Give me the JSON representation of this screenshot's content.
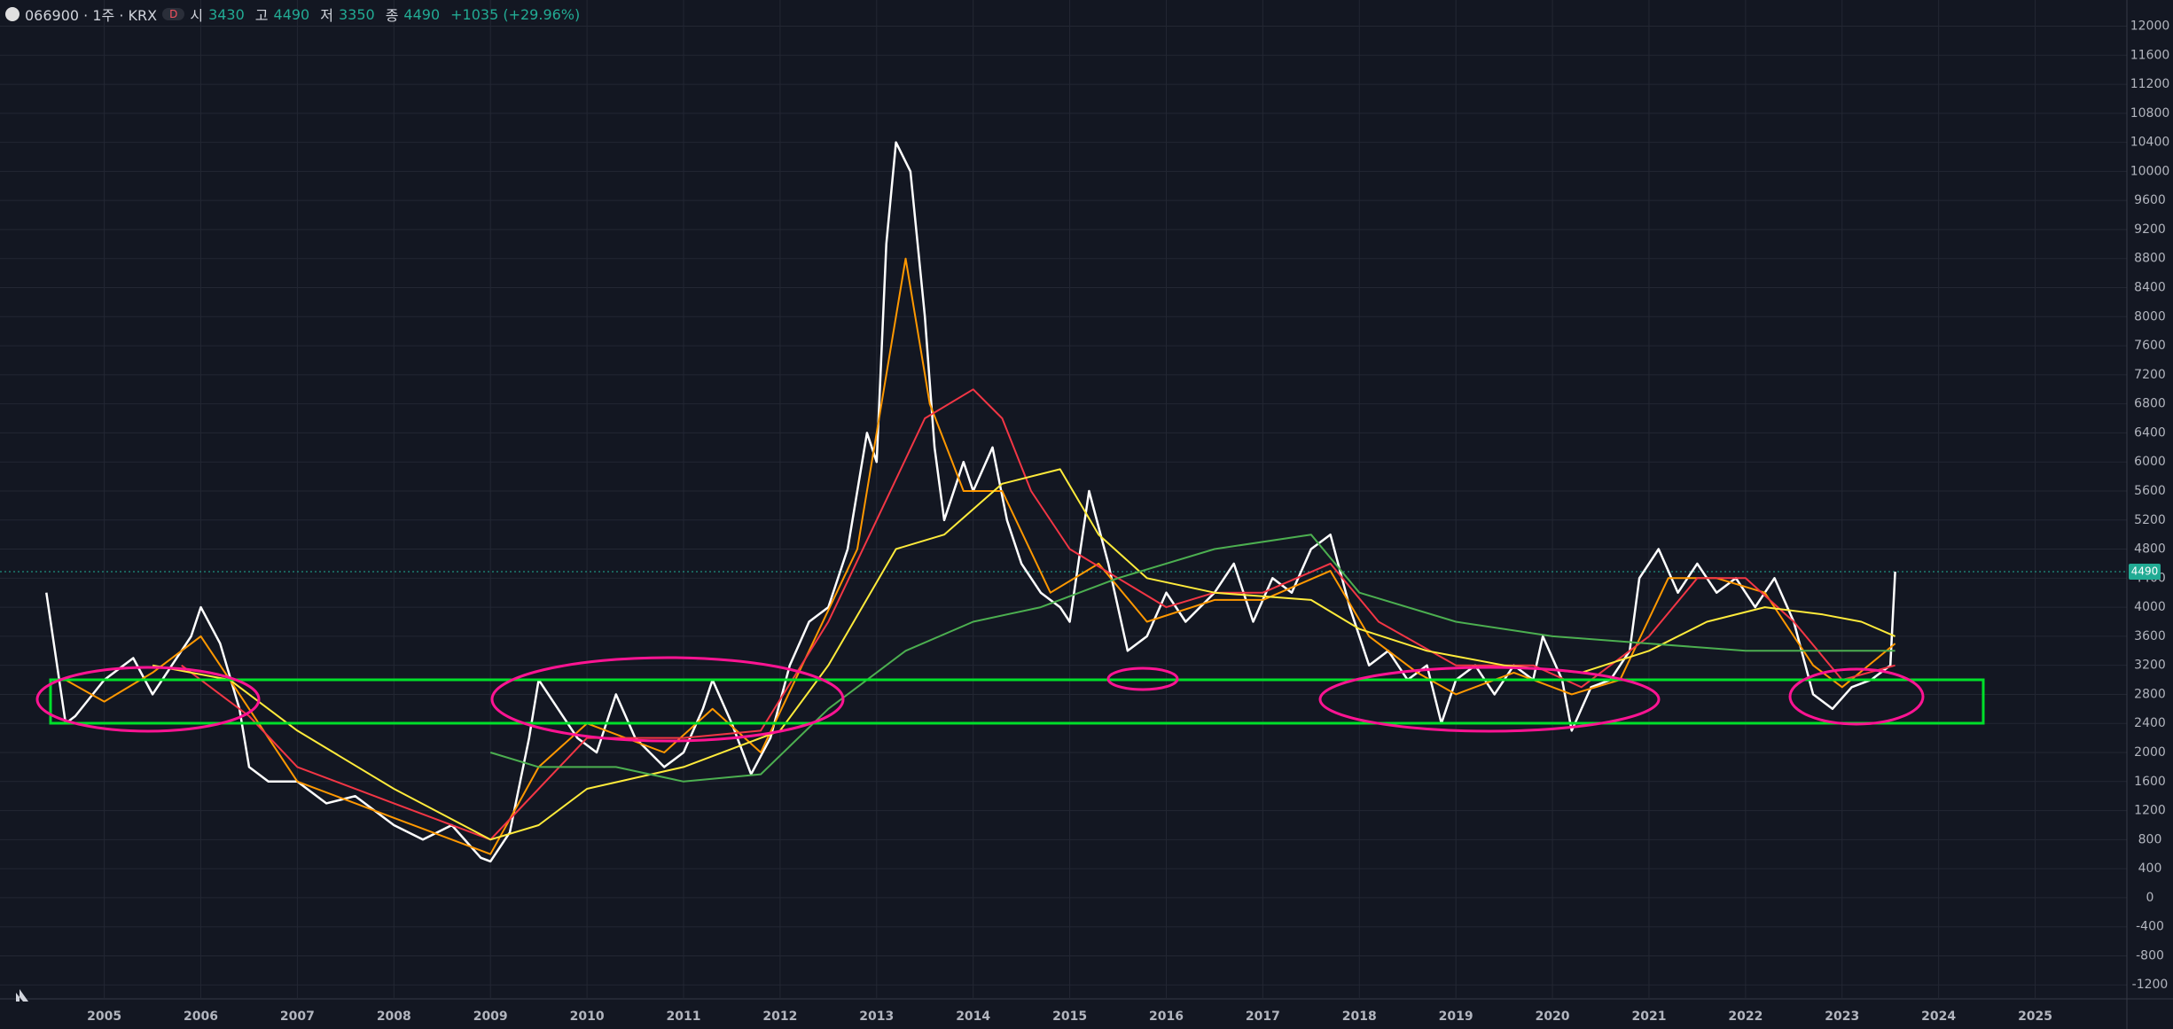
{
  "header": {
    "symbol": "066900 · 1주 · KRX",
    "interval_badge": "D",
    "open_label": "시",
    "open": "3430",
    "high_label": "고",
    "high": "4490",
    "low_label": "저",
    "low": "3350",
    "close_label": "종",
    "close": "4490",
    "change": "+1035 (+29.96%)"
  },
  "chart_data": {
    "type": "line",
    "xlim": [
      2003.92,
      2025.95
    ],
    "xticks": [
      2005,
      2006,
      2007,
      2008,
      2009,
      2010,
      2011,
      2012,
      2013,
      2014,
      2015,
      2016,
      2017,
      2018,
      2019,
      2020,
      2021,
      2022,
      2023,
      2024,
      2025
    ],
    "ylim": [
      -1380,
      12360
    ],
    "yticks": [
      -1200,
      -800,
      -400,
      0,
      400,
      800,
      1200,
      1600,
      2000,
      2400,
      2800,
      3200,
      3600,
      4000,
      4400,
      4800,
      5200,
      5600,
      6000,
      6400,
      6800,
      7200,
      7600,
      8000,
      8400,
      8800,
      9200,
      9600,
      10000,
      10400,
      10800,
      11200,
      11600,
      12000
    ],
    "grid": true,
    "last_price": 4490,
    "last_price_label": "4490",
    "series": [
      {
        "color": "#ffffff",
        "x": [
          2004.4,
          2004.6,
          2004.7,
          2005.0,
          2005.3,
          2005.5,
          2005.7,
          2005.9,
          2006.0,
          2006.2,
          2006.4,
          2006.5,
          2006.7,
          2007.0,
          2007.3,
          2007.6,
          2008.0,
          2008.3,
          2008.6,
          2008.9,
          2009.0,
          2009.2,
          2009.4,
          2009.5,
          2009.7,
          2009.9,
          2010.1,
          2010.3,
          2010.5,
          2010.8,
          2011.0,
          2011.2,
          2011.3,
          2011.5,
          2011.7,
          2011.9,
          2012.1,
          2012.3,
          2012.5,
          2012.7,
          2012.9,
          2013.0,
          2013.1,
          2013.2,
          2013.35,
          2013.5,
          2013.6,
          2013.7,
          2013.9,
          2014.0,
          2014.2,
          2014.35,
          2014.5,
          2014.7,
          2014.9,
          2015.0,
          2015.2,
          2015.4,
          2015.6,
          2015.8,
          2016.0,
          2016.2,
          2016.5,
          2016.7,
          2016.9,
          2017.1,
          2017.3,
          2017.5,
          2017.7,
          2017.9,
          2018.1,
          2018.3,
          2018.5,
          2018.7,
          2018.85,
          2019.0,
          2019.2,
          2019.4,
          2019.6,
          2019.8,
          2019.9,
          2020.1,
          2020.2,
          2020.4,
          2020.6,
          2020.8,
          2020.9,
          2021.1,
          2021.3,
          2021.5,
          2021.7,
          2021.9,
          2022.1,
          2022.3,
          2022.5,
          2022.7,
          2022.9,
          2023.1,
          2023.3,
          2023.5,
          2023.55
        ],
        "values": [
          4200,
          2400,
          2500,
          3000,
          3300,
          2800,
          3200,
          3600,
          4000,
          3500,
          2600,
          1800,
          1600,
          1600,
          1300,
          1400,
          1000,
          800,
          1000,
          550,
          500,
          900,
          2200,
          3000,
          2600,
          2200,
          2000,
          2800,
          2200,
          1800,
          2000,
          2600,
          3000,
          2400,
          1700,
          2200,
          3200,
          3800,
          4000,
          4800,
          6400,
          6000,
          9000,
          10400,
          10000,
          8000,
          6200,
          5200,
          6000,
          5600,
          6200,
          5200,
          4600,
          4200,
          4000,
          3800,
          5600,
          4600,
          3400,
          3600,
          4200,
          3800,
          4200,
          4600,
          3800,
          4400,
          4200,
          4800,
          5000,
          4000,
          3200,
          3400,
          3000,
          3200,
          2400,
          3000,
          3200,
          2800,
          3200,
          3000,
          3600,
          3000,
          2300,
          2900,
          3000,
          3400,
          4400,
          4800,
          4200,
          4600,
          4200,
          4400,
          4000,
          4400,
          3800,
          2800,
          2600,
          2900,
          3000,
          3200,
          4490
        ]
      },
      {
        "color": "#ff9800",
        "x": [
          2004.6,
          2005.0,
          2005.5,
          2006.0,
          2006.5,
          2007.0,
          2008.0,
          2009.0,
          2009.5,
          2010.0,
          2010.8,
          2011.3,
          2011.8,
          2012.3,
          2012.8,
          2013.3,
          2013.55,
          2013.9,
          2014.3,
          2014.8,
          2015.3,
          2015.8,
          2016.5,
          2017.0,
          2017.7,
          2018.1,
          2018.6,
          2019.0,
          2019.6,
          2020.2,
          2020.7,
          2021.2,
          2021.7,
          2022.2,
          2022.7,
          2023.0,
          2023.55
        ],
        "values": [
          3000,
          2700,
          3100,
          3600,
          2600,
          1600,
          1100,
          600,
          1800,
          2400,
          2000,
          2600,
          2000,
          3400,
          4800,
          8800,
          6800,
          5600,
          5600,
          4200,
          4600,
          3800,
          4100,
          4100,
          4500,
          3600,
          3100,
          2800,
          3100,
          2800,
          3000,
          4400,
          4400,
          4200,
          3200,
          2900,
          3500
        ]
      },
      {
        "color": "#f23645",
        "x": [
          2005.8,
          2006.5,
          2007.0,
          2008.0,
          2009.0,
          2009.5,
          2010.0,
          2011.0,
          2011.8,
          2012.5,
          2013.0,
          2013.5,
          2014.0,
          2014.3,
          2014.6,
          2015.0,
          2015.5,
          2016.0,
          2016.5,
          2017.0,
          2017.7,
          2018.2,
          2019.0,
          2019.8,
          2020.3,
          2021.0,
          2021.5,
          2022.0,
          2022.5,
          2023.0,
          2023.55
        ],
        "values": [
          3200,
          2500,
          1800,
          1300,
          800,
          1500,
          2200,
          2200,
          2300,
          3800,
          5200,
          6600,
          7000,
          6600,
          5600,
          4800,
          4400,
          4000,
          4200,
          4200,
          4600,
          3800,
          3200,
          3200,
          2900,
          3600,
          4400,
          4400,
          3800,
          3000,
          3200
        ]
      },
      {
        "color": "#ffeb3b",
        "x": [
          2005.5,
          2006.3,
          2007.0,
          2008.0,
          2009.0,
          2009.5,
          2010.0,
          2011.0,
          2012.0,
          2012.5,
          2013.2,
          2013.7,
          2014.3,
          2014.9,
          2015.3,
          2015.8,
          2016.5,
          2017.5,
          2018.0,
          2018.7,
          2019.5,
          2020.3,
          2021.0,
          2021.6,
          2022.2,
          2022.8,
          2023.2,
          2023.55
        ],
        "values": [
          3200,
          3000,
          2300,
          1500,
          800,
          1000,
          1500,
          1800,
          2300,
          3200,
          4800,
          5000,
          5700,
          5900,
          5000,
          4400,
          4200,
          4100,
          3700,
          3400,
          3200,
          3100,
          3400,
          3800,
          4000,
          3900,
          3800,
          3600
        ]
      },
      {
        "color": "#4caf50",
        "x": [
          2009.0,
          2009.5,
          2010.3,
          2011.0,
          2011.8,
          2012.5,
          2013.3,
          2014.0,
          2014.7,
          2015.5,
          2016.5,
          2017.5,
          2018.0,
          2019.0,
          2020.0,
          2021.0,
          2022.0,
          2023.0,
          2023.55
        ],
        "values": [
          2000,
          1800,
          1800,
          1600,
          1700,
          2600,
          3400,
          3800,
          4000,
          4400,
          4800,
          5000,
          4200,
          3800,
          3600,
          3500,
          3400,
          3400,
          3400
        ]
      }
    ]
  }
}
